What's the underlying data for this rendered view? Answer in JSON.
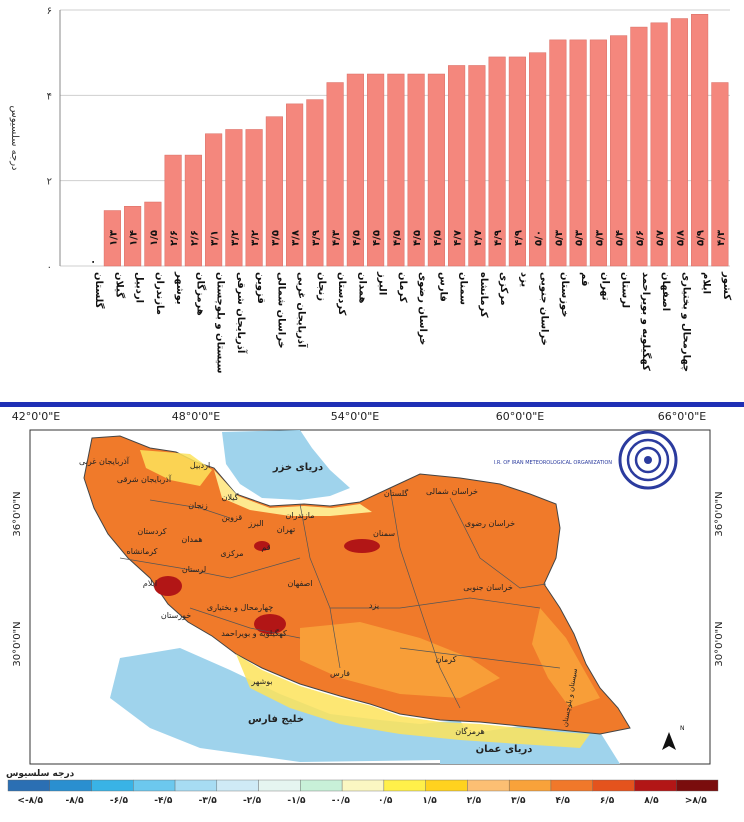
{
  "chart_data": {
    "type": "bar",
    "ylabel": "درجه سلسیوس",
    "ylim": [
      0,
      6
    ],
    "yticks": [
      {
        "v": 0,
        "t": "۰"
      },
      {
        "v": 2,
        "t": "۲"
      },
      {
        "v": 4,
        "t": "۴"
      },
      {
        "v": 6,
        "t": "۶"
      }
    ],
    "grid": true,
    "bar_color": "#f4877d",
    "categories": [
      "گلستان",
      "گیلان",
      "اردبیل",
      "مازندران",
      "بوشهر",
      "هرمزگان",
      "سیستان و بلوچستان",
      "آذربایجان شرقی",
      "قزوین",
      "خراسان شمالی",
      "آذربایجان غربی",
      "زنجان",
      "کردستان",
      "همدان",
      "البرز",
      "کرمان",
      "خراسان رضوی",
      "فارس",
      "سمنان",
      "کرمانشاه",
      "مرکزی",
      "یزد",
      "خراسان جنوبی",
      "خوزستان",
      "قم",
      "تهران",
      "لرستان",
      "کهگیلویه و بویراحمد",
      "اصفهان",
      "چهارمحال و بختیاری",
      "ایلام",
      "کشور"
    ],
    "values": [
      0.0,
      1.3,
      1.4,
      1.5,
      2.6,
      2.6,
      3.1,
      3.2,
      3.2,
      3.5,
      3.8,
      3.9,
      4.3,
      4.5,
      4.5,
      4.5,
      4.5,
      4.5,
      4.7,
      4.7,
      4.9,
      4.9,
      5.0,
      5.3,
      5.3,
      5.3,
      5.4,
      5.6,
      5.7,
      5.8,
      5.9,
      4.3
    ],
    "value_labels": [
      "۰",
      "۱/۳",
      "۱/۴",
      "۱/۵",
      "۲/۶",
      "۲/۶",
      "۳/۱",
      "۳/۲",
      "۳/۲",
      "۳/۵",
      "۳/۸",
      "۳/۹",
      "۴/۳",
      "۴/۵",
      "۴/۵",
      "۴/۵",
      "۴/۵",
      "۴/۵",
      "۴/۷",
      "۴/۷",
      "۴/۹",
      "۴/۹",
      "۵/۰",
      "۵/۳",
      "۵/۳",
      "۵/۳",
      "۵/۴",
      "۵/۶",
      "۵/۷",
      "۵/۸",
      "۵/۹",
      "۴/۳"
    ]
  },
  "map": {
    "lon_labels": [
      "42°0'0\"E",
      "48°0'0\"E",
      "54°0'0\"E",
      "60°0'0\"E",
      "66°0'0\"E"
    ],
    "lat_labels": [
      "36°0'0\"N",
      "30°0'0\"N"
    ],
    "water_labels": {
      "caspian": "دریای خزر",
      "gulf": "خلیج فارس",
      "oman": "دریای عمان"
    },
    "province_labels": [
      "آذربایجان غربی",
      "آذربایجان شرقی",
      "اردبیل",
      "گیلان",
      "مازندران",
      "گلستان",
      "خراسان شمالی",
      "خراسان رضوی",
      "خراسان جنوبی",
      "سمنان",
      "تهران",
      "البرز",
      "قزوین",
      "زنجان",
      "کردستان",
      "کرمانشاه",
      "همدان",
      "مرکزی",
      "قم",
      "لرستان",
      "ایلام",
      "خوزستان",
      "اصفهان",
      "چهارمحال و بختیاری",
      "کهگیلویه و بویراحمد",
      "یزد",
      "فارس",
      "بوشهر",
      "کرمان",
      "هرمزگان",
      "سیستان و بلوچستان"
    ],
    "logo_text": "I.R. OF IRAN METEOROLOGICAL ORGANIZATION",
    "north_label": "N"
  },
  "legend": {
    "title": "درجه سلسیوس",
    "colors": [
      "#2b6fb3",
      "#2a8fd0",
      "#39b3e6",
      "#6cc8ee",
      "#a7dcf3",
      "#cfeaf6",
      "#e5f5f0",
      "#c8f0d8",
      "#fbf7c2",
      "#fff04a",
      "#ffd21f",
      "#fcbf73",
      "#f8a23a",
      "#f0782a",
      "#e4531d",
      "#b21616",
      "#7a0d0d"
    ],
    "labels": [
      "<-۸/۵",
      "-۸/۵",
      "-۶/۵",
      "-۴/۵",
      "-۳/۵",
      "-۲/۵",
      "-۱/۵",
      "-۰/۵",
      "۰/۵",
      "۱/۵",
      "۲/۵",
      "۳/۵",
      "۴/۵",
      "۶/۵",
      "۸/۵",
      ">۸/۵"
    ]
  }
}
